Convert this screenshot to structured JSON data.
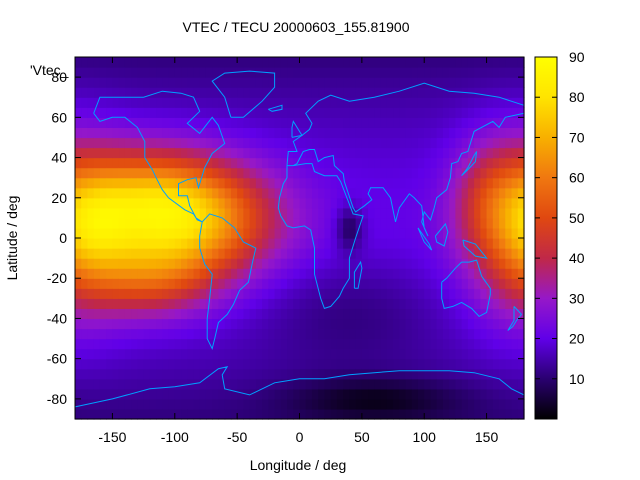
{
  "chart_data": {
    "type": "heatmap",
    "title": "VTEC / TECU 20000603_155.81900",
    "xlabel": "Longitude / deg",
    "ylabel": "Latitude / deg",
    "key_label": "'Vtec_",
    "xlim": [
      -180,
      180
    ],
    "ylim": [
      -90,
      90
    ],
    "x_ticks": [
      -150,
      -100,
      -50,
      0,
      50,
      100,
      150
    ],
    "y_ticks": [
      -80,
      -60,
      -40,
      -20,
      0,
      20,
      40,
      60,
      80
    ],
    "colorbar": {
      "min": 0,
      "max": 90,
      "ticks": [
        10,
        20,
        30,
        40,
        50,
        60,
        70,
        80,
        90
      ]
    },
    "colormap": [
      "#000000",
      "#2a0070",
      "#6000e8",
      "#9618c8",
      "#c02848",
      "#e04810",
      "#f07810",
      "#f8b000",
      "#ffe400",
      "#ffff00"
    ],
    "coastline_color": "#00a0ff",
    "features": [
      {
        "lon": -92,
        "lat": 10,
        "sx": 48,
        "sy": 20,
        "amp": 52
      },
      {
        "lon": -130,
        "lat": 22,
        "sx": 40,
        "sy": 18,
        "amp": 20
      },
      {
        "lon": -120,
        "lat": -20,
        "sx": 35,
        "sy": 14,
        "amp": 22
      },
      {
        "lon": -165,
        "lat": 5,
        "sx": 22,
        "sy": 18,
        "amp": 14
      },
      {
        "lon": 178,
        "lat": 5,
        "sx": 30,
        "sy": 30,
        "amp": 28
      },
      {
        "lon": 150,
        "lat": 20,
        "sx": 20,
        "sy": 20,
        "amp": 12
      },
      {
        "lon": 40,
        "lat": -35,
        "sx": 55,
        "sy": 20,
        "amp": -7
      },
      {
        "lon": 40,
        "lat": 5,
        "sx": 8,
        "sy": 8,
        "amp": -12
      },
      {
        "lon": 60,
        "lat": -80,
        "sx": 50,
        "sy": 8,
        "amp": -10
      }
    ],
    "coastlines": [
      [
        [
          -165,
          62
        ],
        [
          -160,
          70
        ],
        [
          -140,
          70
        ],
        [
          -125,
          70
        ],
        [
          -110,
          73
        ],
        [
          -95,
          72
        ],
        [
          -85,
          70
        ],
        [
          -80,
          63
        ],
        [
          -90,
          57
        ],
        [
          -80,
          52
        ],
        [
          -70,
          60
        ],
        [
          -65,
          56
        ],
        [
          -60,
          47
        ],
        [
          -70,
          42
        ],
        [
          -76,
          35
        ],
        [
          -81,
          25
        ],
        [
          -83,
          30
        ],
        [
          -90,
          29
        ],
        [
          -97,
          27
        ],
        [
          -97,
          21
        ],
        [
          -90,
          21
        ],
        [
          -88,
          16
        ],
        [
          -83,
          10
        ],
        [
          -78,
          8
        ],
        [
          -82,
          9
        ],
        [
          -85,
          12
        ],
        [
          -92,
          14
        ],
        [
          -105,
          20
        ],
        [
          -110,
          24
        ],
        [
          -115,
          30
        ],
        [
          -118,
          34
        ],
        [
          -124,
          40
        ],
        [
          -124,
          48
        ],
        [
          -130,
          55
        ],
        [
          -140,
          60
        ],
        [
          -150,
          60
        ],
        [
          -160,
          58
        ],
        [
          -165,
          62
        ]
      ],
      [
        [
          -78,
          8
        ],
        [
          -72,
          12
        ],
        [
          -62,
          10
        ],
        [
          -52,
          5
        ],
        [
          -45,
          -2
        ],
        [
          -35,
          -5
        ],
        [
          -38,
          -13
        ],
        [
          -41,
          -22
        ],
        [
          -48,
          -26
        ],
        [
          -53,
          -33
        ],
        [
          -58,
          -38
        ],
        [
          -65,
          -42
        ],
        [
          -68,
          -50
        ],
        [
          -70,
          -55
        ],
        [
          -74,
          -50
        ],
        [
          -74,
          -40
        ],
        [
          -72,
          -30
        ],
        [
          -70,
          -18
        ],
        [
          -76,
          -13
        ],
        [
          -80,
          -5
        ],
        [
          -80,
          1
        ],
        [
          -78,
          8
        ]
      ],
      [
        [
          -55,
          60
        ],
        [
          -45,
          60
        ],
        [
          -30,
          68
        ],
        [
          -20,
          75
        ],
        [
          -20,
          82
        ],
        [
          -40,
          83
        ],
        [
          -60,
          82
        ],
        [
          -70,
          78
        ],
        [
          -60,
          70
        ],
        [
          -55,
          60
        ]
      ],
      [
        [
          -10,
          36
        ],
        [
          -5,
          36
        ],
        [
          5,
          37
        ],
        [
          10,
          37
        ],
        [
          12,
          33
        ],
        [
          20,
          31
        ],
        [
          30,
          31
        ],
        [
          33,
          28
        ],
        [
          38,
          20
        ],
        [
          43,
          12
        ],
        [
          51,
          11
        ],
        [
          45,
          0
        ],
        [
          40,
          -10
        ],
        [
          40,
          -20
        ],
        [
          35,
          -25
        ],
        [
          32,
          -29
        ],
        [
          25,
          -34
        ],
        [
          20,
          -35
        ],
        [
          17,
          -30
        ],
        [
          12,
          -18
        ],
        [
          12,
          -5
        ],
        [
          9,
          4
        ],
        [
          4,
          6
        ],
        [
          -5,
          5
        ],
        [
          -10,
          6
        ],
        [
          -15,
          11
        ],
        [
          -17,
          15
        ],
        [
          -16,
          20
        ],
        [
          -13,
          27
        ],
        [
          -10,
          30
        ],
        [
          -10,
          36
        ]
      ],
      [
        [
          -10,
          36
        ],
        [
          -9,
          43
        ],
        [
          -2,
          43
        ],
        [
          -5,
          48
        ],
        [
          2,
          51
        ],
        [
          8,
          54
        ],
        [
          10,
          57
        ],
        [
          5,
          62
        ],
        [
          15,
          68
        ],
        [
          25,
          71
        ],
        [
          40,
          68
        ],
        [
          60,
          70
        ],
        [
          80,
          73
        ],
        [
          100,
          77
        ],
        [
          120,
          73
        ],
        [
          140,
          72
        ],
        [
          160,
          70
        ],
        [
          180,
          66
        ]
      ],
      [
        [
          180,
          62
        ],
        [
          165,
          60
        ],
        [
          160,
          55
        ],
        [
          155,
          58
        ],
        [
          140,
          53
        ],
        [
          135,
          43
        ],
        [
          130,
          42
        ],
        [
          127,
          38
        ],
        [
          122,
          37
        ],
        [
          121,
          30
        ],
        [
          118,
          24
        ],
        [
          110,
          20
        ],
        [
          108,
          15
        ],
        [
          105,
          9
        ],
        [
          100,
          13
        ],
        [
          98,
          8
        ],
        [
          103,
          1
        ],
        [
          100,
          5
        ],
        [
          98,
          16
        ],
        [
          92,
          20
        ],
        [
          88,
          22
        ],
        [
          80,
          15
        ],
        [
          77,
          8
        ],
        [
          73,
          20
        ],
        [
          67,
          25
        ],
        [
          57,
          25
        ],
        [
          55,
          22
        ],
        [
          58,
          19
        ],
        [
          52,
          16
        ],
        [
          45,
          13
        ],
        [
          43,
          15
        ],
        [
          36,
          28
        ],
        [
          35,
          32
        ],
        [
          28,
          36
        ],
        [
          27,
          41
        ],
        [
          20,
          40
        ],
        [
          15,
          38
        ],
        [
          12,
          44
        ],
        [
          8,
          44
        ],
        [
          3,
          43
        ],
        [
          -2,
          37
        ],
        [
          -5,
          36
        ]
      ],
      [
        [
          114,
          -22
        ],
        [
          114,
          -30
        ],
        [
          116,
          -35
        ],
        [
          123,
          -34
        ],
        [
          130,
          -32
        ],
        [
          138,
          -35
        ],
        [
          144,
          -39
        ],
        [
          150,
          -37
        ],
        [
          153,
          -28
        ],
        [
          153,
          -25
        ],
        [
          146,
          -19
        ],
        [
          142,
          -11
        ],
        [
          136,
          -12
        ],
        [
          130,
          -12
        ],
        [
          125,
          -15
        ],
        [
          118,
          -20
        ],
        [
          114,
          -22
        ]
      ],
      [
        [
          -180,
          -84
        ],
        [
          -150,
          -80
        ],
        [
          -120,
          -75
        ],
        [
          -100,
          -74
        ],
        [
          -80,
          -72
        ],
        [
          -65,
          -65
        ],
        [
          -58,
          -64
        ],
        [
          -62,
          -68
        ],
        [
          -60,
          -75
        ],
        [
          -40,
          -78
        ],
        [
          -20,
          -72
        ],
        [
          0,
          -70
        ],
        [
          20,
          -70
        ],
        [
          40,
          -68
        ],
        [
          60,
          -67
        ],
        [
          80,
          -66
        ],
        [
          100,
          -66
        ],
        [
          120,
          -66
        ],
        [
          140,
          -67
        ],
        [
          160,
          -70
        ],
        [
          170,
          -75
        ],
        [
          180,
          -78
        ]
      ],
      [
        [
          44,
          -25
        ],
        [
          47,
          -25
        ],
        [
          50,
          -15
        ],
        [
          49,
          -12
        ],
        [
          44,
          -17
        ],
        [
          44,
          -25
        ]
      ],
      [
        [
          -6,
          50
        ],
        [
          2,
          51
        ],
        [
          0,
          53
        ],
        [
          -3,
          56
        ],
        [
          -5,
          58
        ],
        [
          -6,
          55
        ],
        [
          -6,
          50
        ]
      ],
      [
        [
          130,
          31
        ],
        [
          135,
          34
        ],
        [
          141,
          38
        ],
        [
          142,
          43
        ],
        [
          140,
          41
        ],
        [
          135,
          35
        ],
        [
          130,
          31
        ]
      ],
      [
        [
          95,
          5
        ],
        [
          104,
          -3
        ],
        [
          106,
          -6
        ],
        [
          100,
          -2
        ],
        [
          95,
          5
        ]
      ],
      [
        [
          109,
          1
        ],
        [
          117,
          7
        ],
        [
          119,
          3
        ],
        [
          116,
          -4
        ],
        [
          110,
          -2
        ],
        [
          109,
          1
        ]
      ],
      [
        [
          131,
          -1
        ],
        [
          141,
          -3
        ],
        [
          150,
          -10
        ],
        [
          141,
          -9
        ],
        [
          132,
          -4
        ],
        [
          131,
          -1
        ]
      ],
      [
        [
          172,
          -34
        ],
        [
          178,
          -38
        ],
        [
          174,
          -41
        ],
        [
          171,
          -44
        ],
        [
          167,
          -46
        ],
        [
          172,
          -41
        ],
        [
          172,
          -34
        ]
      ],
      [
        [
          -25,
          64
        ],
        [
          -14,
          66
        ],
        [
          -14,
          64
        ],
        [
          -22,
          63
        ],
        [
          -25,
          64
        ]
      ]
    ]
  }
}
